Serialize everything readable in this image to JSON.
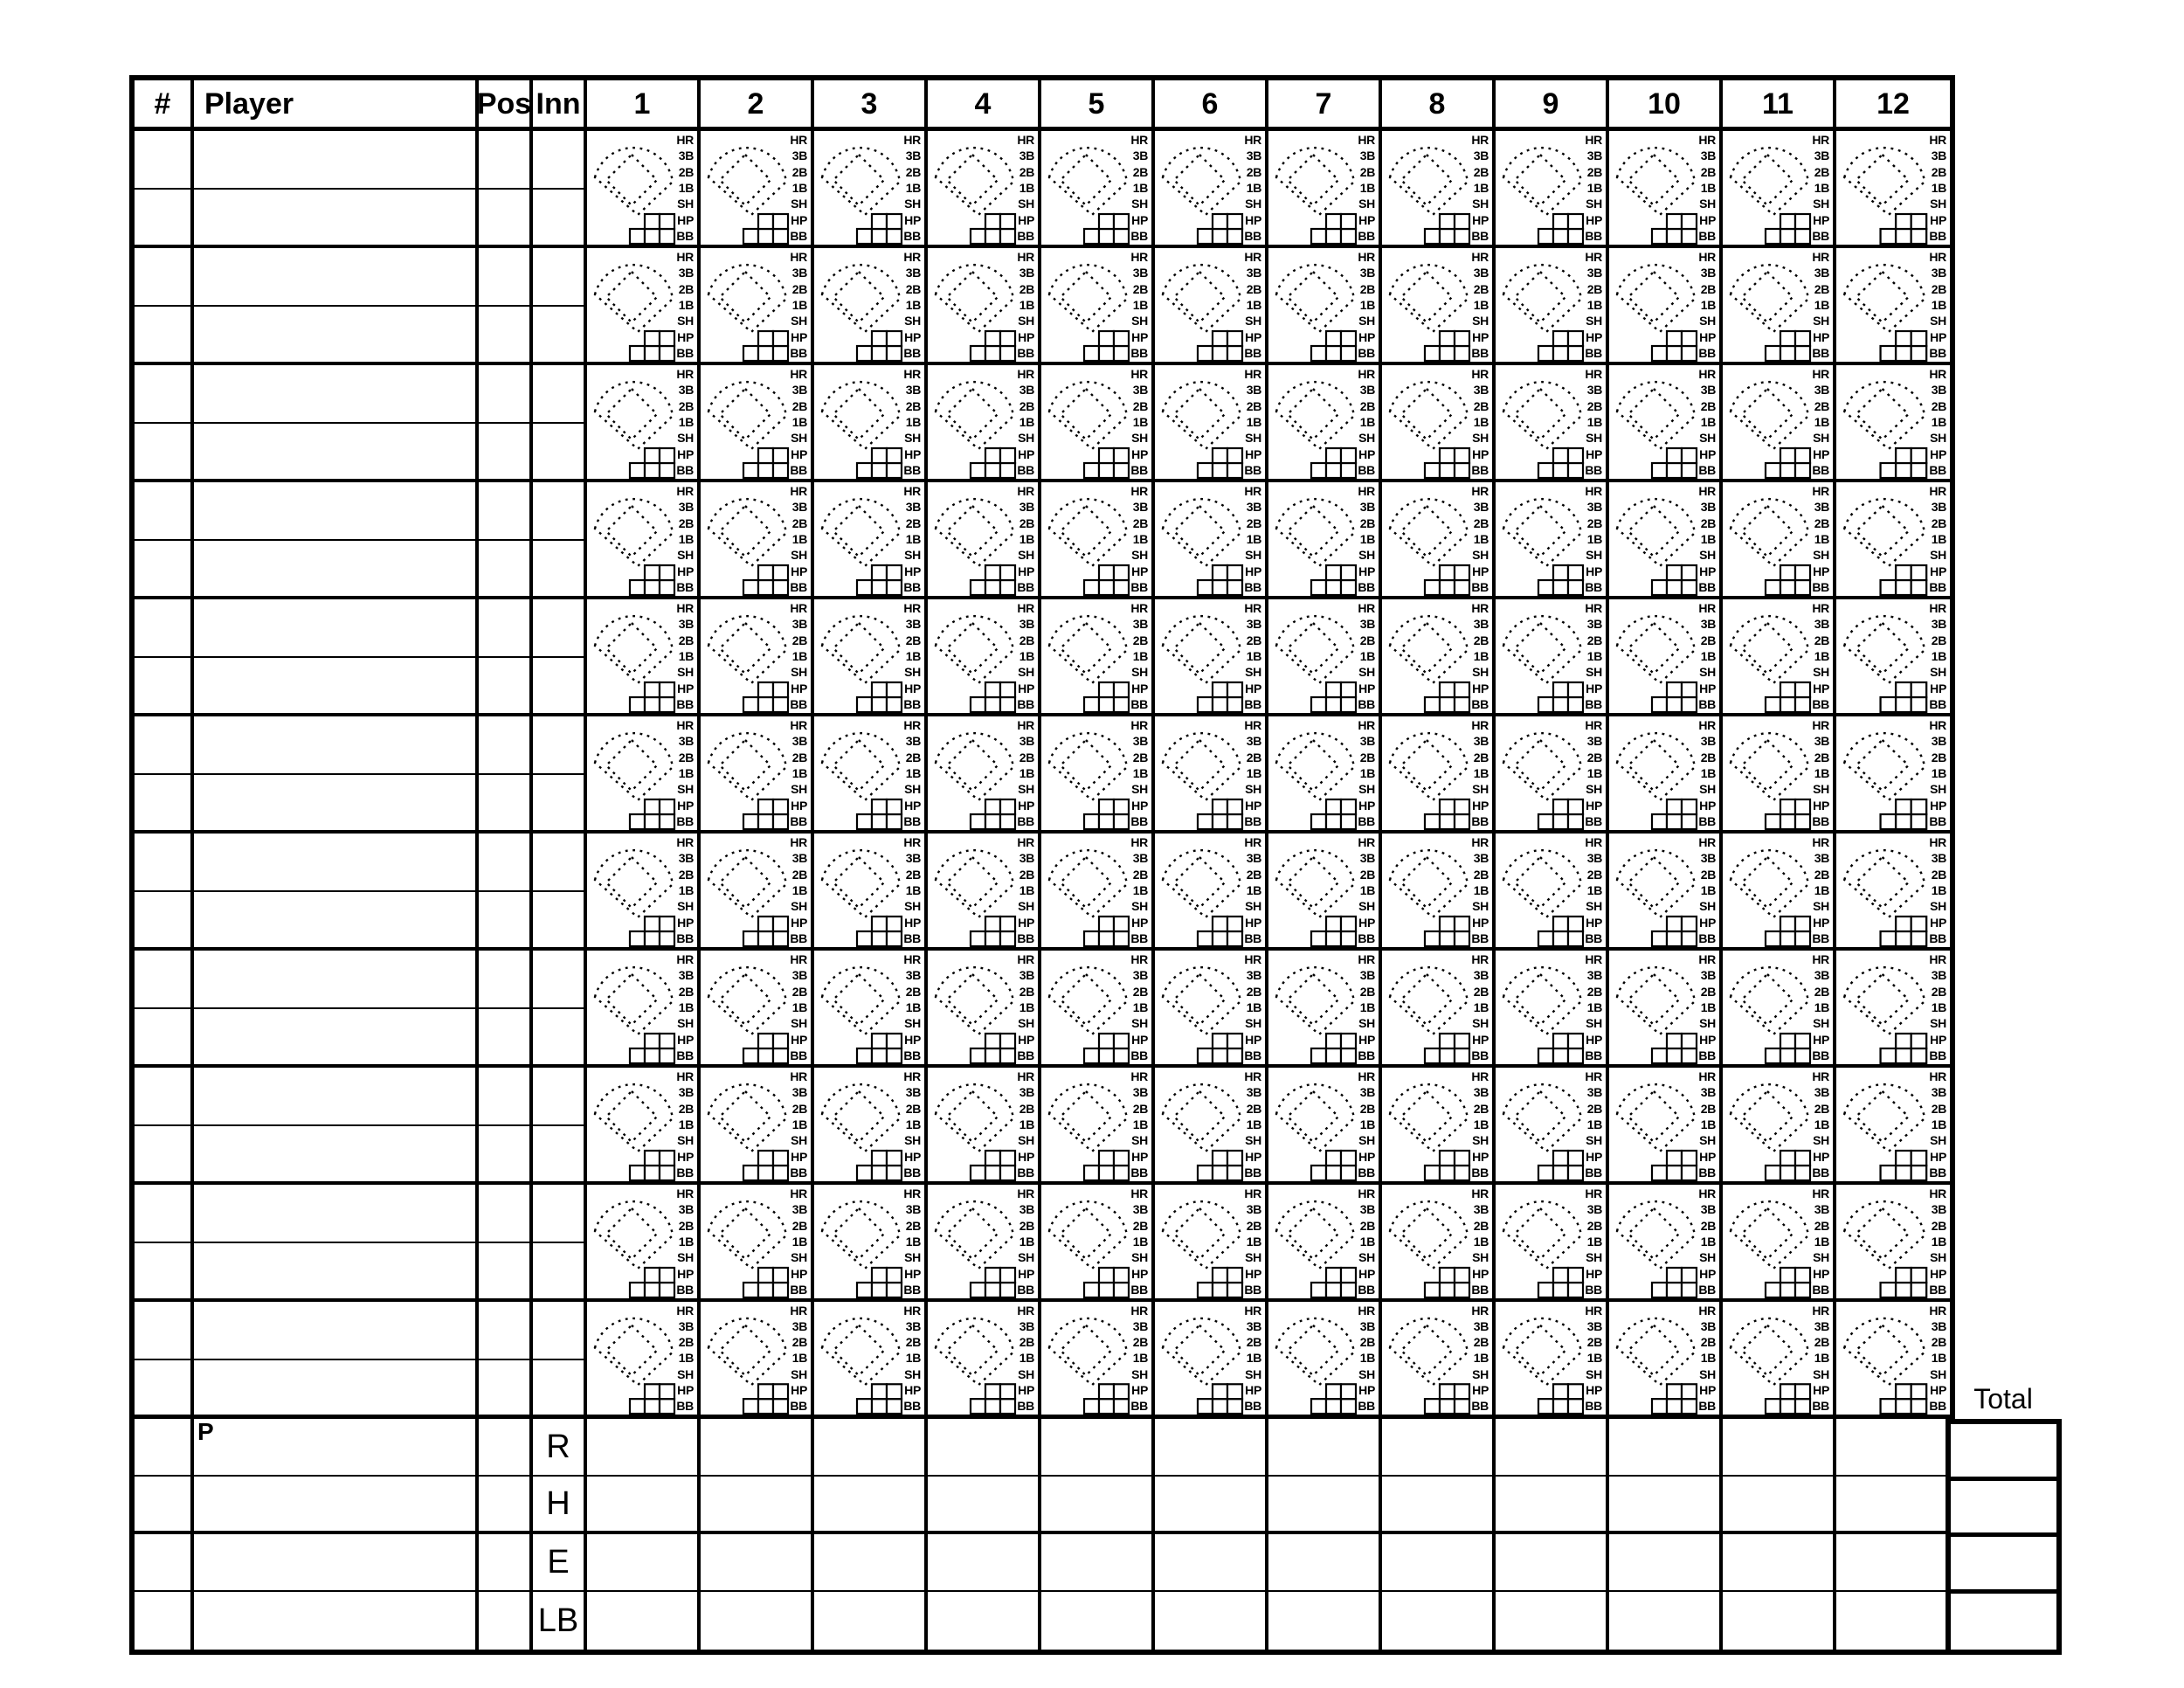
{
  "sheet": {
    "header": {
      "number": "#",
      "player": "Player",
      "pos": "Pos",
      "inn": "Inn"
    },
    "innings": [
      "1",
      "2",
      "3",
      "4",
      "5",
      "6",
      "7",
      "8",
      "9",
      "10",
      "11",
      "12"
    ],
    "cell_labels": [
      "HR",
      "3B",
      "2B",
      "1B",
      "SH",
      "HP",
      "BB"
    ],
    "bottom": {
      "pitcher_label": "P",
      "stat_rows": [
        "R",
        "H",
        "E",
        "LB"
      ]
    },
    "total_label": "Total",
    "layout": {
      "player_rows": 11,
      "innings_count": 12,
      "bottom_rows": 4
    },
    "colors": {
      "ink": "#000000",
      "paper": "#ffffff"
    }
  }
}
